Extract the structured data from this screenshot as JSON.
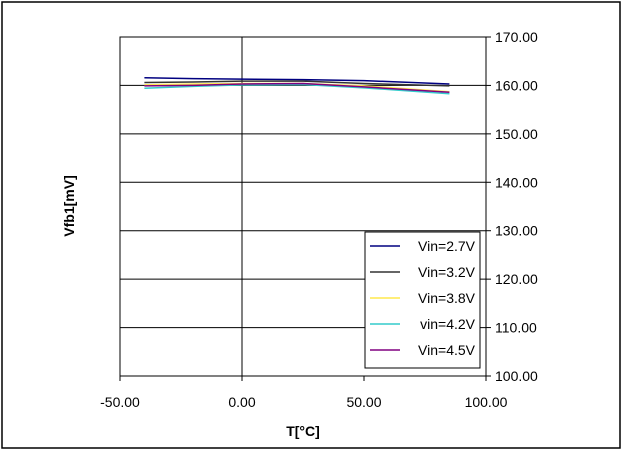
{
  "chart_data": {
    "type": "line",
    "title": "",
    "xlabel": "T[°C]",
    "ylabel": "Vfb1[mV]",
    "xlim": [
      -50,
      100
    ],
    "ylim": [
      100,
      170
    ],
    "x_ticks": [
      -50,
      0,
      50,
      100
    ],
    "x_tick_labels": [
      "-50.00",
      "0.00",
      "50.00",
      "100.00"
    ],
    "y_ticks": [
      100,
      110,
      120,
      130,
      140,
      150,
      160,
      170
    ],
    "y_tick_labels": [
      "100.00",
      "110.00",
      "120.00",
      "130.00",
      "140.00",
      "150.00",
      "160.00",
      "170.00"
    ],
    "y_axis_side": "right",
    "grid": "horizontal",
    "legend_position": "bottom-right",
    "series": [
      {
        "name": "Vin=2.7V",
        "color": "#000080",
        "x": [
          -40,
          -20,
          0,
          25,
          50,
          85
        ],
        "values": [
          161.6,
          161.4,
          161.3,
          161.2,
          161.0,
          160.3
        ]
      },
      {
        "name": "Vin=3.2V",
        "color": "#333333",
        "x": [
          -40,
          -20,
          0,
          25,
          50,
          85
        ],
        "values": [
          160.6,
          160.7,
          160.9,
          160.9,
          160.4,
          159.9
        ]
      },
      {
        "name": "Vin=3.8V",
        "color": "#ffe84d",
        "x": [
          -40,
          -20,
          0,
          25,
          50,
          85
        ],
        "values": [
          160.1,
          160.3,
          160.4,
          160.4,
          159.9,
          158.7
        ]
      },
      {
        "name": "vin=4.2V",
        "color": "#33cccc",
        "x": [
          -40,
          -20,
          0,
          25,
          50,
          85
        ],
        "values": [
          159.4,
          159.8,
          160.1,
          160.2,
          159.5,
          158.3
        ]
      },
      {
        "name": "Vin=4.5V",
        "color": "#800080",
        "x": [
          -40,
          -20,
          0,
          25,
          50,
          85
        ],
        "values": [
          159.9,
          160.0,
          160.3,
          160.4,
          159.7,
          158.6
        ]
      }
    ]
  }
}
